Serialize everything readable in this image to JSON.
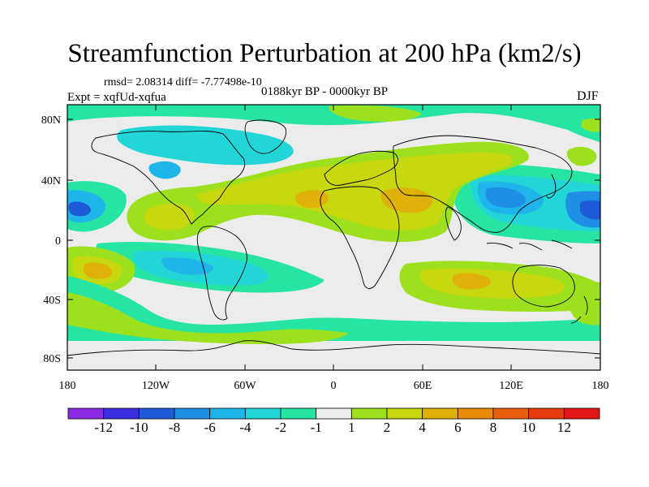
{
  "title": "Streamfunction Perturbation at 200 hPa (km2/s)",
  "stats": "rmsd= 2.08314 diff= -7.77498e-10",
  "experiment": "Expt = xqfUd-xqfua",
  "period": "0188kyr BP - 0000kyr BP",
  "season": "DJF",
  "y_labels": [
    "80N",
    "40N",
    "0",
    "40S",
    "80S"
  ],
  "x_labels": [
    "180",
    "120W",
    "60W",
    "0",
    "60E",
    "120E",
    "180"
  ],
  "colorbar": {
    "labels": [
      "-12",
      "-10",
      "-8",
      "-6",
      "-4",
      "-2",
      "-1",
      "1",
      "2",
      "4",
      "6",
      "8",
      "10",
      "12"
    ],
    "colors": [
      "#8a2be2",
      "#3a2ee0",
      "#1e5ad8",
      "#1f8fe6",
      "#1fb4ea",
      "#22d6d8",
      "#26e5a2",
      "#ececec",
      "#9de01e",
      "#c8d80e",
      "#e0b10a",
      "#e88a0a",
      "#e8600e",
      "#e83c0e",
      "#e21818"
    ]
  },
  "colors": {
    "land_outline": "#000000",
    "neutral": "#ececec",
    "pos1": "#9de01e",
    "pos2": "#c8d80e",
    "pos3": "#e0b10a",
    "pos4": "#e88a0a",
    "neg1": "#26e5a2",
    "neg2": "#22d6d8",
    "neg3": "#1fb4ea",
    "neg4": "#1f8fe6",
    "neg5": "#1e5ad8"
  }
}
